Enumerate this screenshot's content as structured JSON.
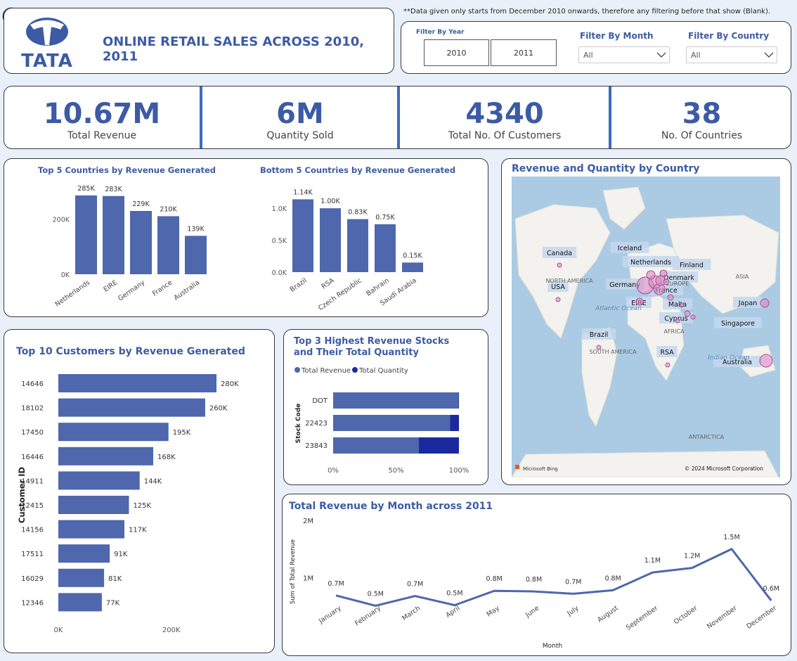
{
  "header": {
    "title": "ONLINE RETAIL SALES ACROSS 2010, 2011",
    "logo_text": "TATA",
    "note": "**Data given only starts from December 2010 onwards, therefore any filtering before that show (Blank)."
  },
  "filters": {
    "year_label": "Filter By Year",
    "years": [
      "2010",
      "2011"
    ],
    "month_label": "Filter By Month",
    "month_value": "All",
    "country_label": "Filter By Country",
    "country_value": "All"
  },
  "kpis": [
    {
      "value": "10.67M",
      "label": "Total Revenue"
    },
    {
      "value": "6M",
      "label": "Quantity Sold"
    },
    {
      "value": "4340",
      "label": "Total No. Of Customers"
    },
    {
      "value": "38",
      "label": "No. Of Countries"
    }
  ],
  "icons": {
    "back": "back-arrow-icon",
    "chevron": "chevron-down-icon"
  },
  "colors": {
    "bar": "#4e67ad",
    "dark_bar": "#1a2a9e",
    "accent": "#3c5ba4",
    "bubble": "#d98bc4"
  },
  "chart_data": [
    {
      "type": "bar",
      "title": "Top 5 Countries by Revenue Generated",
      "categories": [
        "Netherlands",
        "EIRE",
        "Germany",
        "France",
        "Australia"
      ],
      "values": [
        285000,
        283000,
        229000,
        210000,
        139000
      ],
      "data_labels": [
        "285K",
        "283K",
        "229K",
        "210K",
        "139K"
      ],
      "ylim": [
        0,
        290000
      ],
      "yticks": [
        {
          "v": 0,
          "t": "0K"
        },
        {
          "v": 200000,
          "t": "200K"
        }
      ]
    },
    {
      "type": "bar",
      "title": "Bottom 5 Countries by Revenue Generated",
      "categories": [
        "Brazil",
        "RSA",
        "Czech Republic",
        "Bahrain",
        "Saudi Arabia"
      ],
      "values": [
        1.14,
        1.0,
        0.83,
        0.75,
        0.15
      ],
      "data_labels": [
        "1.14K",
        "1.00K",
        "0.83K",
        "0.75K",
        "0.15K"
      ],
      "ylim": [
        0,
        1.2
      ],
      "yticks": [
        {
          "v": 0,
          "t": "0.0K"
        },
        {
          "v": 0.5,
          "t": "0.5K"
        },
        {
          "v": 1.0,
          "t": "1.0K"
        }
      ]
    },
    {
      "type": "bar",
      "orientation": "horizontal",
      "title": "Top 10 Customers by Revenue Generated",
      "ylabel": "Customer ID",
      "categories": [
        "14646",
        "18102",
        "17450",
        "16446",
        "14911",
        "12415",
        "14156",
        "17511",
        "16029",
        "12346"
      ],
      "values": [
        280000,
        260000,
        195000,
        168000,
        144000,
        125000,
        117000,
        91000,
        81000,
        77000
      ],
      "data_labels": [
        "280K",
        "260K",
        "195K",
        "168K",
        "144K",
        "125K",
        "117K",
        "91K",
        "81K",
        "77K"
      ],
      "xlim": [
        0,
        280000
      ],
      "xticks": [
        {
          "v": 0,
          "t": "0K"
        },
        {
          "v": 200000,
          "t": "200K"
        }
      ]
    },
    {
      "type": "bar",
      "orientation": "horizontal",
      "stacked": "100%",
      "title": "Top 3 Highest Revenue Stocks and Their Total Quantity",
      "ylabel": "Stock Code",
      "categories": [
        "DOT",
        "22423",
        "23843"
      ],
      "series": [
        {
          "name": "Total Revenue",
          "values": [
            99.5,
            93,
            68
          ]
        },
        {
          "name": "Total Quantity",
          "values": [
            0.5,
            7,
            32
          ]
        }
      ],
      "xticks": [
        "0%",
        "50%",
        "100%"
      ]
    },
    {
      "type": "line",
      "title": "Total Revenue by Month across 2011",
      "xlabel": "Month",
      "ylabel": "Sum of Total Revenue",
      "x": [
        "January",
        "February",
        "March",
        "April",
        "May",
        "June",
        "July",
        "August",
        "September",
        "October",
        "November",
        "December"
      ],
      "values": [
        0.69,
        0.51,
        0.68,
        0.52,
        0.77,
        0.76,
        0.72,
        0.78,
        1.09,
        1.17,
        1.5,
        0.6
      ],
      "data_labels": [
        "0.7M",
        "0.5M",
        "0.7M",
        "0.5M",
        "0.8M",
        "0.8M",
        "0.7M",
        "0.8M",
        "1.1M",
        "1.2M",
        "1.5M",
        "0.6M"
      ],
      "ylim": [
        0,
        2
      ],
      "yticks": [
        {
          "v": 1,
          "t": "1M"
        },
        {
          "v": 2,
          "t": "2M"
        }
      ]
    }
  ],
  "map": {
    "title": "Revenue and Quantity by Country",
    "country_labels": [
      "Canada",
      "Iceland",
      "Netherlands",
      "Finland",
      "Denmark",
      "Germany",
      "France",
      "USA",
      "EIRE",
      "Malta",
      "Cyprus",
      "Japan",
      "Singapore",
      "Brazil",
      "RSA",
      "Australia"
    ],
    "region_labels": [
      "NORTH AMERICA",
      "EUROPE",
      "ASIA",
      "AFRICA",
      "SOUTH AMERICA",
      "ANTARCTICA",
      "Atlantic Ocean",
      "Indian Ocean"
    ],
    "credit_left": "Microsoft Bing",
    "credit_right": "© 2024 Microsoft Corporation"
  }
}
